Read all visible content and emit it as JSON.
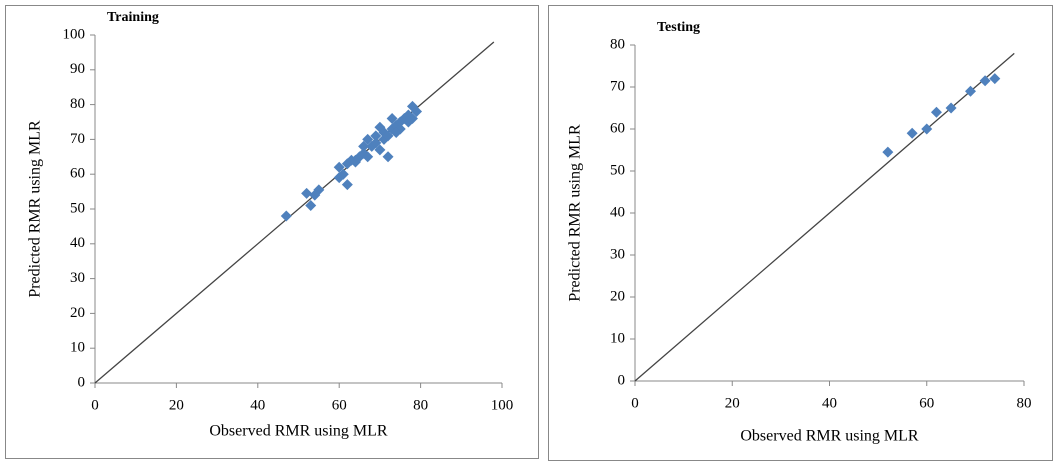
{
  "chart_data": [
    {
      "type": "scatter",
      "title": "Training",
      "x_label": "Observed RMR using  MLR",
      "y_label": "Predicted RMR using  MLR",
      "x": [
        47,
        52,
        53,
        54,
        55,
        60,
        60,
        61,
        62,
        62,
        63,
        64,
        65,
        66,
        67,
        67,
        68,
        69,
        70,
        70,
        71,
        71,
        72,
        72,
        73,
        73,
        74,
        75,
        75,
        76,
        77,
        78,
        78,
        79,
        77,
        74,
        69,
        66,
        64
      ],
      "y": [
        48,
        54.5,
        51,
        54,
        55.5,
        62,
        59,
        60,
        63,
        57,
        64,
        63.5,
        65,
        66,
        70,
        65,
        68,
        69,
        73.5,
        67,
        70,
        72,
        65,
        71,
        73,
        76,
        74,
        73,
        75,
        76,
        77,
        79.5,
        76,
        78,
        75,
        72,
        71,
        68,
        64
      ],
      "color": "#4f81bd",
      "xlim": [
        0,
        100
      ],
      "ylim": [
        0,
        100
      ],
      "xticks": [
        0,
        20,
        40,
        60,
        80,
        100
      ],
      "yticks": [
        0,
        10,
        20,
        30,
        40,
        50,
        60,
        70,
        80,
        90,
        100
      ],
      "reference_line": {
        "x": [
          0,
          98
        ],
        "y": [
          0,
          98
        ]
      }
    },
    {
      "type": "scatter",
      "title": "Testing",
      "x_label": "Observed RMR  using MLR",
      "y_label": "Predicted RMR using  MLR",
      "x": [
        52,
        57,
        60,
        62,
        65,
        69,
        72,
        74
      ],
      "y": [
        54.5,
        59,
        60,
        64,
        65,
        69,
        71.5,
        72
      ],
      "color": "#4f81bd",
      "xlim": [
        0,
        80
      ],
      "ylim": [
        0,
        80
      ],
      "xticks": [
        0,
        20,
        40,
        60,
        80
      ],
      "yticks": [
        0,
        10,
        20,
        30,
        40,
        50,
        60,
        70,
        80
      ],
      "reference_line": {
        "x": [
          0,
          78
        ],
        "y": [
          0,
          78
        ]
      }
    }
  ]
}
